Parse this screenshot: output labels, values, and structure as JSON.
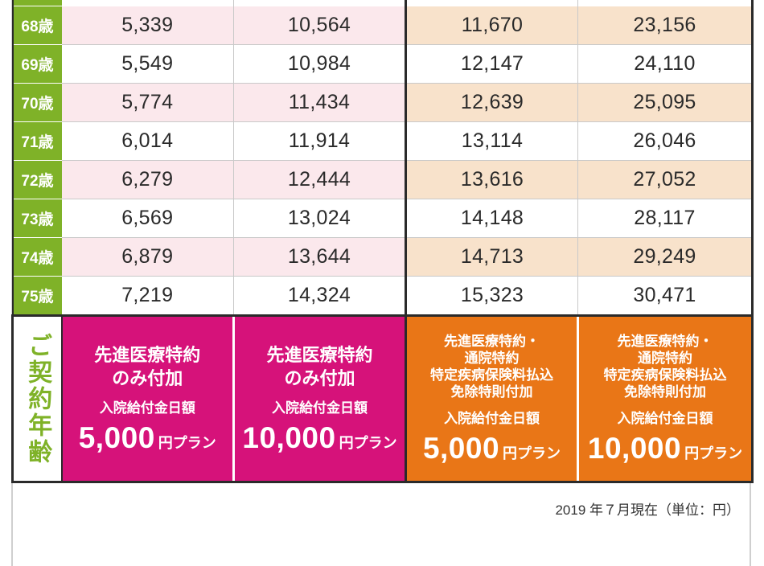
{
  "rows": [
    {
      "age": "68歳",
      "values": [
        "5,339",
        "10,564",
        "11,670",
        "23,156"
      ]
    },
    {
      "age": "69歳",
      "values": [
        "5,549",
        "10,984",
        "12,147",
        "24,110"
      ]
    },
    {
      "age": "70歳",
      "values": [
        "5,774",
        "11,434",
        "12,639",
        "25,095"
      ]
    },
    {
      "age": "71歳",
      "values": [
        "6,014",
        "11,914",
        "13,114",
        "26,046"
      ]
    },
    {
      "age": "72歳",
      "values": [
        "6,279",
        "12,444",
        "13,616",
        "27,052"
      ]
    },
    {
      "age": "73歳",
      "values": [
        "6,569",
        "13,024",
        "14,148",
        "28,117"
      ]
    },
    {
      "age": "74歳",
      "values": [
        "6,879",
        "13,644",
        "14,713",
        "29,249"
      ]
    },
    {
      "age": "75歳",
      "values": [
        "7,219",
        "14,324",
        "15,323",
        "30,471"
      ]
    }
  ],
  "footer_label": "ご契約年齢",
  "plans": [
    {
      "title": [
        "先進医療特約",
        "のみ付加"
      ],
      "sub": "入院給付金日額",
      "amount": "5,000",
      "unit": "円プラン"
    },
    {
      "title": [
        "先進医療特約",
        "のみ付加"
      ],
      "sub": "入院給付金日額",
      "amount": "10,000",
      "unit": "円プラン"
    },
    {
      "title": [
        "先進医療特約・",
        "通院特約",
        "特定疾病保険料払込",
        "免除特則付加"
      ],
      "sub": "入院給付金日額",
      "amount": "5,000",
      "unit": "円プラン"
    },
    {
      "title": [
        "先進医療特約・",
        "通院特約",
        "特定疾病保険料払込",
        "免除特則付加"
      ],
      "sub": "入院給付金日額",
      "amount": "10,000",
      "unit": "円プラン"
    }
  ],
  "footnote": "2019 年７月現在（単位：円）",
  "colors": {
    "age_green": "#7fb228",
    "magenta": "#d6127a",
    "orange": "#e97617",
    "pink_row": "#fbe8ec",
    "beige_row": "#f8e2cb"
  }
}
